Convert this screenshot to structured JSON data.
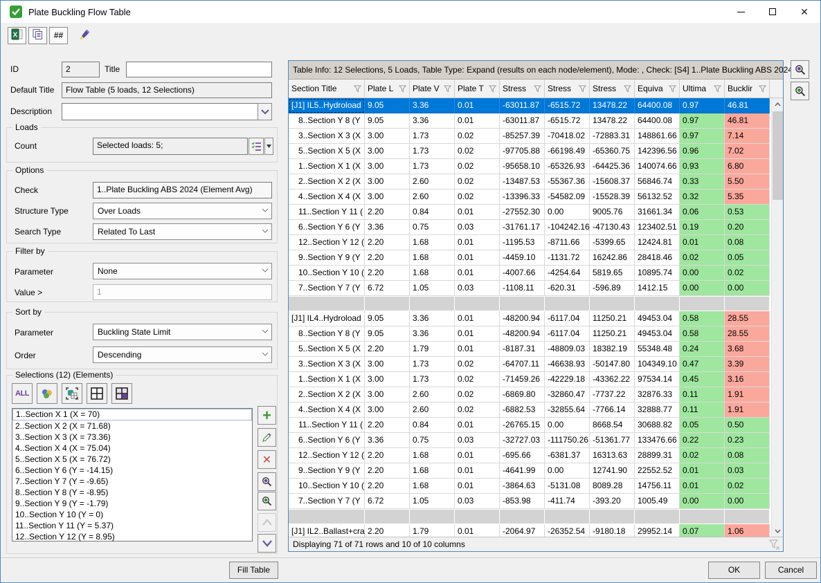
{
  "window": {
    "title": "Plate Buckling Flow Table"
  },
  "toolbar": {
    "hash_label": "##"
  },
  "form": {
    "id_label": "ID",
    "id_value": "2",
    "title_label": "Title",
    "title_value": "",
    "default_title_label": "Default Title",
    "default_title_value": "Flow Table (5 loads, 12 Selections)",
    "description_label": "Description",
    "description_value": "",
    "loads": {
      "group_label": "Loads",
      "count_label": "Count",
      "count_value": "Selected loads: 5;"
    },
    "options": {
      "group_label": "Options",
      "check_label": "Check",
      "check_value": "1..Plate Buckling ABS 2024 (Element Avg)",
      "structure_type_label": "Structure Type",
      "structure_type_value": "Over Loads",
      "search_type_label": "Search Type",
      "search_type_value": "Related To Last"
    },
    "filter": {
      "group_label": "Filter by",
      "parameter_label": "Parameter",
      "parameter_value": "None",
      "value_label": "Value >",
      "value_value": "1"
    },
    "sort": {
      "group_label": "Sort by",
      "parameter_label": "Parameter",
      "parameter_value": "Buckling State Limit",
      "order_label": "Order",
      "order_value": "Descending"
    },
    "selections": {
      "group_label": "Selections (12) (Elements)",
      "all_label": "ALL",
      "items": [
        "1..Section X 1 (X = 70)",
        "2..Section X 2 (X = 71.68)",
        "3..Section X 3 (X = 73.36)",
        "4..Section X 4 (X = 75.04)",
        "5..Section X 5 (X = 76.72)",
        "6..Section Y 6 (Y = -14.15)",
        "7..Section Y 7 (Y = -9.65)",
        "8..Section Y 8 (Y = -8.95)",
        "9..Section Y 9 (Y = -1.79)",
        "10..Section Y 10 (Y = 0)",
        "11..Section Y 11 (Y = 5.37)",
        "12..Section Y 12 (Y = 8.95)"
      ]
    }
  },
  "table": {
    "info": "Table Info: 12 Selections, 5 Loads, Table Type: Expand (results on each node/element), Mode: , Check: [S4] 1..Plate Buckling ABS 2024 (",
    "columns": [
      "Section Title",
      "Plate L",
      "Plate V",
      "Plate T",
      "Stress",
      "Stress",
      "Stress",
      "Equiva",
      "Ultima",
      "Bucklir"
    ],
    "rows": [
      {
        "kind": "selected",
        "cells": [
          "[J1] IL5..Hydroload",
          "9.05",
          "3.36",
          "0.01",
          "-63011.87",
          "-6515.72",
          "13478.22",
          "64400.08",
          "0.97",
          "46.81"
        ],
        "ultima": "",
        "buckling": ""
      },
      {
        "kind": "child",
        "cells": [
          "8..Section Y 8 (Y",
          "9.05",
          "3.36",
          "0.01",
          "-63011.87",
          "-6515.72",
          "13478.22",
          "64400.08",
          "0.97",
          "46.81"
        ],
        "ultima": "g",
        "buckling": "r"
      },
      {
        "kind": "child",
        "cells": [
          "3..Section X 3 (X",
          "3.00",
          "1.73",
          "0.02",
          "-85257.39",
          "-70418.02",
          "-72883.31",
          "148861.66",
          "0.97",
          "7.14"
        ],
        "ultima": "g",
        "buckling": "r"
      },
      {
        "kind": "child",
        "cells": [
          "5..Section X 5 (X",
          "3.00",
          "1.73",
          "0.02",
          "-97705.88",
          "-66198.49",
          "-65360.75",
          "142396.56",
          "0.96",
          "7.02"
        ],
        "ultima": "g",
        "buckling": "r"
      },
      {
        "kind": "child",
        "cells": [
          "1..Section X 1 (X",
          "3.00",
          "1.73",
          "0.02",
          "-95658.10",
          "-65326.93",
          "-64425.36",
          "140074.66",
          "0.93",
          "6.80"
        ],
        "ultima": "g",
        "buckling": "r"
      },
      {
        "kind": "child",
        "cells": [
          "2..Section X 2 (X",
          "3.00",
          "2.60",
          "0.02",
          "-13487.53",
          "-55367.36",
          "-15608.37",
          "56846.74",
          "0.33",
          "5.50"
        ],
        "ultima": "g",
        "buckling": "r"
      },
      {
        "kind": "child",
        "cells": [
          "4..Section X 4 (X",
          "3.00",
          "2.60",
          "0.02",
          "-13396.33",
          "-54582.09",
          "-15528.39",
          "56132.52",
          "0.32",
          "5.35"
        ],
        "ultima": "g",
        "buckling": "r"
      },
      {
        "kind": "child",
        "cells": [
          "11..Section Y 11 (",
          "2.20",
          "0.84",
          "0.01",
          "-27552.30",
          "0.00",
          "9005.76",
          "31661.34",
          "0.06",
          "0.53"
        ],
        "ultima": "g",
        "buckling": "g"
      },
      {
        "kind": "child",
        "cells": [
          "6..Section Y 6 (Y",
          "3.36",
          "0.75",
          "0.03",
          "-31761.17",
          "-104242.16",
          "-47130.43",
          "123402.51",
          "0.19",
          "0.20"
        ],
        "ultima": "g",
        "buckling": "g"
      },
      {
        "kind": "child",
        "cells": [
          "12..Section Y 12 (",
          "2.20",
          "1.68",
          "0.01",
          "-1195.53",
          "-8711.66",
          "-5399.65",
          "12424.81",
          "0.01",
          "0.08"
        ],
        "ultima": "g",
        "buckling": "g"
      },
      {
        "kind": "child",
        "cells": [
          "9..Section Y 9 (Y",
          "2.20",
          "1.68",
          "0.01",
          "-4459.10",
          "-1131.72",
          "16242.86",
          "28418.46",
          "0.02",
          "0.05"
        ],
        "ultima": "g",
        "buckling": "g"
      },
      {
        "kind": "child",
        "cells": [
          "10..Section Y 10 (",
          "2.20",
          "1.68",
          "0.01",
          "-4007.66",
          "-4254.64",
          "5819.65",
          "10895.74",
          "0.00",
          "0.02"
        ],
        "ultima": "g",
        "buckling": "g"
      },
      {
        "kind": "child",
        "cells": [
          "7..Section Y 7 (Y",
          "6.72",
          "1.05",
          "0.03",
          "-1108.11",
          "-620.31",
          "-596.89",
          "1412.15",
          "0.00",
          "0.00"
        ],
        "ultima": "g",
        "buckling": "g"
      },
      {
        "kind": "separator",
        "cells": [
          "",
          "",
          "",
          "",
          "",
          "",
          "",
          "",
          "",
          ""
        ],
        "ultima": "",
        "buckling": ""
      },
      {
        "kind": "group",
        "cells": [
          "[J1] IL4..Hydroload",
          "9.05",
          "3.36",
          "0.01",
          "-48200.94",
          "-6117.04",
          "11250.21",
          "49453.04",
          "0.58",
          "28.55"
        ],
        "ultima": "g",
        "buckling": "r"
      },
      {
        "kind": "child",
        "cells": [
          "8..Section Y 8 (Y",
          "9.05",
          "3.36",
          "0.01",
          "-48200.94",
          "-6117.04",
          "11250.21",
          "49453.04",
          "0.58",
          "28.55"
        ],
        "ultima": "g",
        "buckling": "r"
      },
      {
        "kind": "child",
        "cells": [
          "5..Section X 5 (X",
          "2.20",
          "1.79",
          "0.01",
          "-8187.31",
          "-48809.03",
          "18382.19",
          "55348.48",
          "0.24",
          "3.68"
        ],
        "ultima": "g",
        "buckling": "r"
      },
      {
        "kind": "child",
        "cells": [
          "3..Section X 3 (X",
          "3.00",
          "1.73",
          "0.02",
          "-64707.11",
          "-46638.93",
          "-50147.80",
          "104349.10",
          "0.47",
          "3.39"
        ],
        "ultima": "g",
        "buckling": "r"
      },
      {
        "kind": "child",
        "cells": [
          "1..Section X 1 (X",
          "3.00",
          "1.73",
          "0.02",
          "-71459.26",
          "-42229.18",
          "-43362.22",
          "97534.14",
          "0.45",
          "3.16"
        ],
        "ultima": "g",
        "buckling": "r"
      },
      {
        "kind": "child",
        "cells": [
          "2..Section X 2 (X",
          "3.00",
          "2.60",
          "0.02",
          "-6869.80",
          "-32860.47",
          "-7737.22",
          "32876.33",
          "0.11",
          "1.91"
        ],
        "ultima": "g",
        "buckling": "r"
      },
      {
        "kind": "child",
        "cells": [
          "4..Section X 4 (X",
          "3.00",
          "2.60",
          "0.02",
          "-6882.53",
          "-32855.64",
          "-7766.14",
          "32888.77",
          "0.11",
          "1.91"
        ],
        "ultima": "g",
        "buckling": "r"
      },
      {
        "kind": "child",
        "cells": [
          "11..Section Y 11 (",
          "2.20",
          "0.84",
          "0.01",
          "-26765.15",
          "0.00",
          "8668.54",
          "30688.82",
          "0.05",
          "0.50"
        ],
        "ultima": "g",
        "buckling": "g"
      },
      {
        "kind": "child",
        "cells": [
          "6..Section Y 6 (Y",
          "3.36",
          "0.75",
          "0.03",
          "-32727.03",
          "-111750.26",
          "-51361.77",
          "133476.66",
          "0.22",
          "0.23"
        ],
        "ultima": "g",
        "buckling": "g"
      },
      {
        "kind": "child",
        "cells": [
          "12..Section Y 12 (",
          "2.20",
          "1.68",
          "0.01",
          "-695.66",
          "-6381.37",
          "16313.63",
          "28899.31",
          "0.02",
          "0.08"
        ],
        "ultima": "g",
        "buckling": "g"
      },
      {
        "kind": "child",
        "cells": [
          "9..Section Y 9 (Y",
          "2.20",
          "1.68",
          "0.01",
          "-4641.99",
          "0.00",
          "12741.90",
          "22552.52",
          "0.01",
          "0.03"
        ],
        "ultima": "g",
        "buckling": "g"
      },
      {
        "kind": "child",
        "cells": [
          "10..Section Y 10 (",
          "2.20",
          "1.68",
          "0.01",
          "-3864.63",
          "-5131.08",
          "8089.28",
          "14756.11",
          "0.01",
          "0.02"
        ],
        "ultima": "g",
        "buckling": "g"
      },
      {
        "kind": "child",
        "cells": [
          "7..Section Y 7 (Y",
          "6.72",
          "1.05",
          "0.03",
          "-853.98",
          "-411.74",
          "-393.20",
          "1005.49",
          "0.00",
          "0.00"
        ],
        "ultima": "g",
        "buckling": "g"
      },
      {
        "kind": "separator",
        "cells": [
          "",
          "",
          "",
          "",
          "",
          "",
          "",
          "",
          "",
          ""
        ],
        "ultima": "",
        "buckling": ""
      },
      {
        "kind": "group",
        "cells": [
          "[J1] IL2..Ballast+cra",
          "2.20",
          "1.79",
          "0.01",
          "-2064.97",
          "-26352.54",
          "-9180.18",
          "29952.14",
          "0.07",
          "1.06"
        ],
        "ultima": "g",
        "buckling": "r"
      }
    ],
    "status": "Displaying 71 of 71 rows and 10 of 10 columns"
  },
  "footer": {
    "fill_table_label": "Fill Table",
    "ok_label": "OK",
    "cancel_label": "Cancel"
  },
  "colors": {
    "selected_row": "#0078d7",
    "pass_green": "#9fe69f",
    "fail_red": "#fba89c"
  }
}
